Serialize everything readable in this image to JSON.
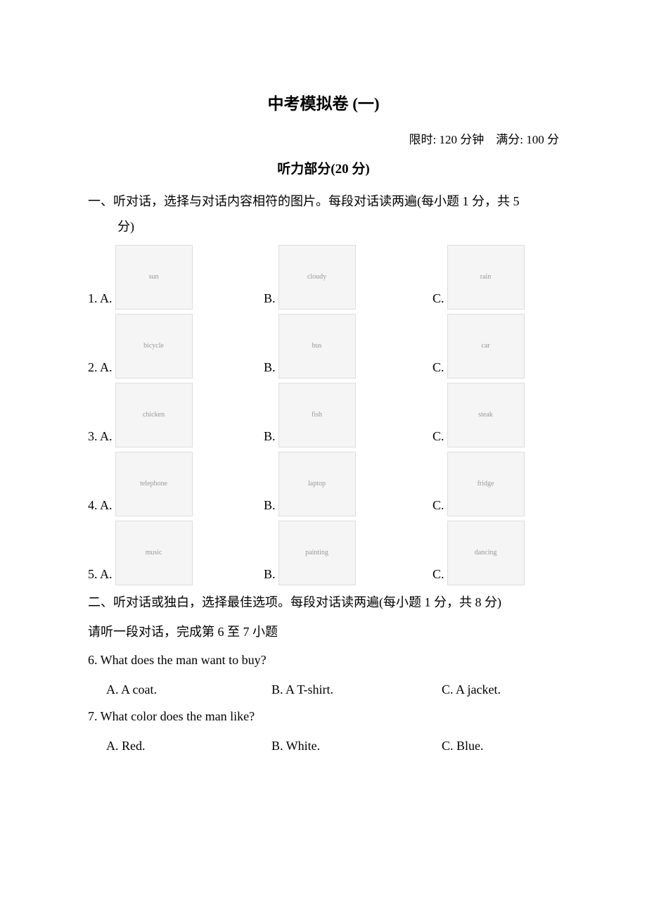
{
  "title": "中考模拟卷 (一)",
  "meta": "限时: 120 分钟　满分: 100 分",
  "section_title": "听力部分(20 分)",
  "instruction1_line1": "一、听对话，选择与对话内容相符的图片。每段对话读两遍(每小题 1 分，共 5",
  "instruction1_line2": "分)",
  "picture_questions": [
    {
      "num": "1.",
      "options": [
        {
          "label": "A.",
          "desc": "sun"
        },
        {
          "label": "B.",
          "desc": "cloudy"
        },
        {
          "label": "C.",
          "desc": "rain"
        }
      ]
    },
    {
      "num": "2.",
      "options": [
        {
          "label": "A.",
          "desc": "bicycle"
        },
        {
          "label": "B.",
          "desc": "bus"
        },
        {
          "label": "C.",
          "desc": "car"
        }
      ]
    },
    {
      "num": "3.",
      "options": [
        {
          "label": "A.",
          "desc": "chicken"
        },
        {
          "label": "B.",
          "desc": "fish"
        },
        {
          "label": "C.",
          "desc": "steak"
        }
      ]
    },
    {
      "num": "4.",
      "options": [
        {
          "label": "A.",
          "desc": "telephone"
        },
        {
          "label": "B.",
          "desc": "laptop"
        },
        {
          "label": "C.",
          "desc": "fridge"
        }
      ]
    },
    {
      "num": "5.",
      "options": [
        {
          "label": "A.",
          "desc": "music"
        },
        {
          "label": "B.",
          "desc": "painting"
        },
        {
          "label": "C.",
          "desc": "dancing"
        }
      ]
    }
  ],
  "instruction2": "二、听对话或独白，选择最佳选项。每段对话读两遍(每小题 1 分，共 8 分)",
  "sub_instruction": "请听一段对话，完成第 6 至 7 小题",
  "q6": {
    "text": "6.  What does the man want to buy?",
    "a": "A. A coat.",
    "b": "B. A T-shirt.",
    "c": "C. A jacket."
  },
  "q7": {
    "text": "7.  What color does the man like?",
    "a": "A. Red.",
    "b": "B. White.",
    "c": "C. Blue."
  }
}
